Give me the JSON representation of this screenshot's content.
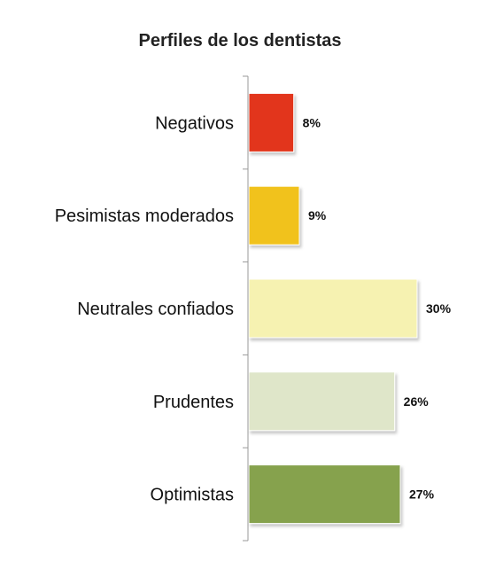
{
  "chart_data": {
    "type": "bar",
    "orientation": "horizontal",
    "title": "Perfiles de los dentistas",
    "categories": [
      "Negativos",
      "Pesimistas moderados",
      "Neutrales confiados",
      "Prudentes",
      "Optimistas"
    ],
    "values": [
      8,
      9,
      30,
      26,
      27
    ],
    "value_labels": [
      "8%",
      "9%",
      "30%",
      "26%",
      "27%"
    ],
    "colors": [
      "#e2361c",
      "#f1c21a",
      "#f6f2b1",
      "#dfe6c9",
      "#86a24e"
    ],
    "xlim": [
      0,
      30
    ],
    "grid": false,
    "legend": "none"
  }
}
